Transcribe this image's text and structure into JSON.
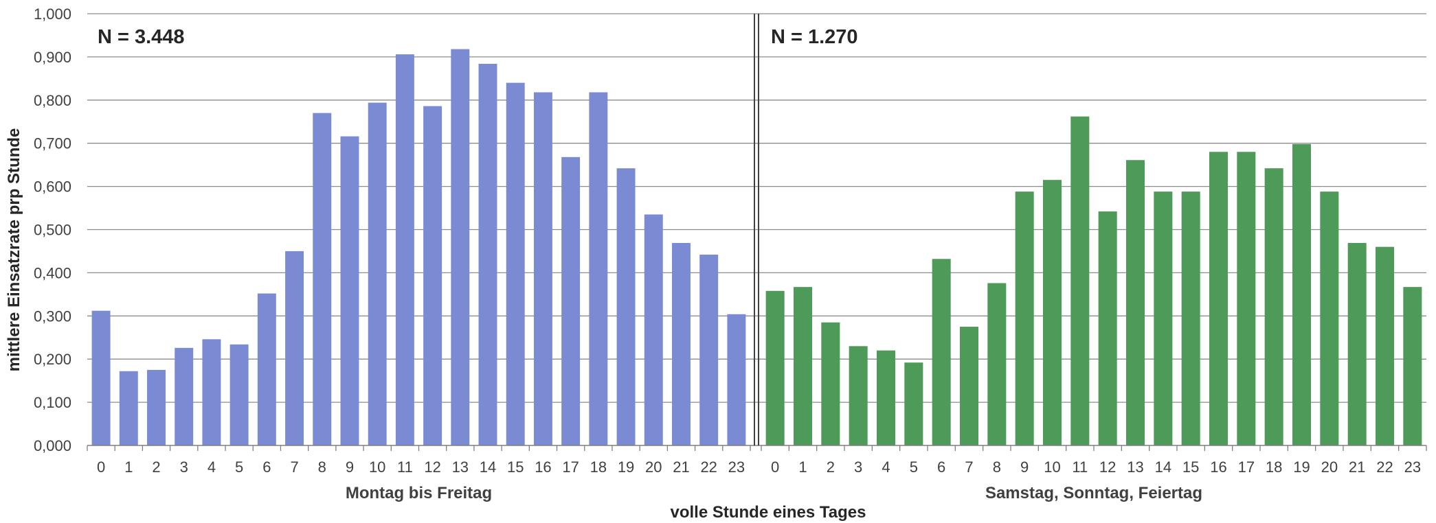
{
  "chart_data": {
    "type": "bar",
    "ylabel": "mittlere Einsatzrate prp Stunde",
    "xlabel": "volle Stunde eines Tages",
    "ylim": [
      0,
      1
    ],
    "yticks": [
      "0,000",
      "0,100",
      "0,200",
      "0,300",
      "0,400",
      "0,500",
      "0,600",
      "0,700",
      "0,800",
      "0,900",
      "1,000"
    ],
    "grid": true,
    "groups": [
      {
        "label": "Montag bis Freitag",
        "annotation": "N = 3.448",
        "color": "#7b8bd3",
        "categories": [
          "0",
          "1",
          "2",
          "3",
          "4",
          "5",
          "6",
          "7",
          "8",
          "9",
          "10",
          "11",
          "12",
          "13",
          "14",
          "15",
          "16",
          "17",
          "18",
          "19",
          "20",
          "21",
          "22",
          "23"
        ],
        "values": [
          0.312,
          0.172,
          0.175,
          0.226,
          0.246,
          0.234,
          0.352,
          0.45,
          0.77,
          0.716,
          0.794,
          0.906,
          0.786,
          0.918,
          0.884,
          0.84,
          0.818,
          0.668,
          0.818,
          0.642,
          0.535,
          0.469,
          0.442,
          0.304
        ]
      },
      {
        "label": "Samstag, Sonntag, Feiertag",
        "annotation": "N = 1.270",
        "color": "#4e9a58",
        "categories": [
          "0",
          "1",
          "2",
          "3",
          "4",
          "5",
          "6",
          "7",
          "8",
          "9",
          "10",
          "11",
          "12",
          "13",
          "14",
          "15",
          "16",
          "17",
          "18",
          "19",
          "20",
          "21",
          "22",
          "23"
        ],
        "values": [
          0.358,
          0.367,
          0.285,
          0.23,
          0.22,
          0.192,
          0.432,
          0.275,
          0.376,
          0.588,
          0.615,
          0.762,
          0.542,
          0.661,
          0.588,
          0.588,
          0.68,
          0.68,
          0.642,
          0.698,
          0.588,
          0.469,
          0.46,
          0.367
        ]
      }
    ]
  }
}
